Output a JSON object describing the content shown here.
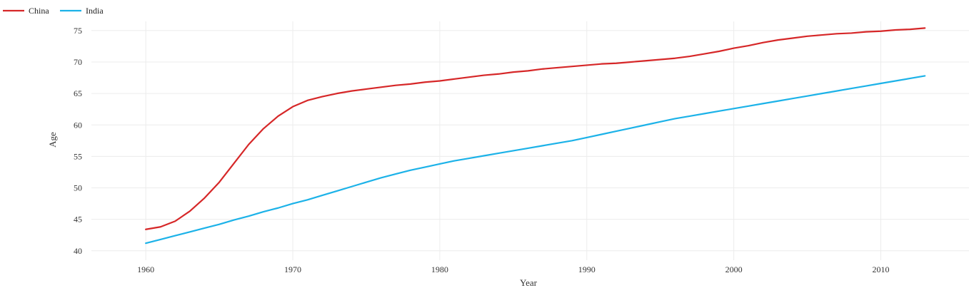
{
  "chart_data": {
    "type": "line",
    "title": "",
    "xlabel": "Year",
    "ylabel": "Age",
    "xlim": [
      1956.3,
      2016
    ],
    "ylim": [
      38.5,
      78.5
    ],
    "x_ticks": [
      1960,
      1970,
      1980,
      1990,
      2000,
      2010
    ],
    "y_ticks": [
      40,
      45,
      50,
      55,
      60,
      65,
      70,
      75
    ],
    "grid": true,
    "legend_position": "top-left",
    "x": [
      1960,
      1961,
      1962,
      1963,
      1964,
      1965,
      1966,
      1967,
      1968,
      1969,
      1970,
      1971,
      1972,
      1973,
      1974,
      1975,
      1976,
      1977,
      1978,
      1979,
      1980,
      1981,
      1982,
      1983,
      1984,
      1985,
      1986,
      1987,
      1988,
      1989,
      1990,
      1991,
      1992,
      1993,
      1994,
      1995,
      1996,
      1997,
      1998,
      1999,
      2000,
      2001,
      2002,
      2003,
      2004,
      2005,
      2006,
      2007,
      2008,
      2009,
      2010,
      2011,
      2012,
      2013
    ],
    "series": [
      {
        "name": "China",
        "color": "#d62728",
        "values": [
          43.4,
          43.8,
          44.7,
          46.3,
          48.4,
          50.9,
          53.9,
          56.9,
          59.4,
          61.4,
          62.9,
          63.9,
          64.5,
          65.0,
          65.4,
          65.7,
          66.0,
          66.3,
          66.5,
          66.8,
          67.0,
          67.3,
          67.6,
          67.9,
          68.1,
          68.4,
          68.6,
          68.9,
          69.1,
          69.3,
          69.5,
          69.7,
          69.8,
          70.0,
          70.2,
          70.4,
          70.6,
          70.9,
          71.3,
          71.7,
          72.2,
          72.6,
          73.1,
          73.5,
          73.8,
          74.1,
          74.3,
          74.5,
          74.6,
          74.8,
          74.9,
          75.1,
          75.2,
          75.4
        ]
      },
      {
        "name": "India",
        "color": "#1cb2e8",
        "values": [
          41.2,
          41.8,
          42.4,
          43.0,
          43.6,
          44.2,
          44.9,
          45.5,
          46.2,
          46.8,
          47.5,
          48.1,
          48.8,
          49.5,
          50.2,
          50.9,
          51.6,
          52.2,
          52.8,
          53.3,
          53.8,
          54.3,
          54.7,
          55.1,
          55.5,
          55.9,
          56.3,
          56.7,
          57.1,
          57.5,
          58.0,
          58.5,
          59.0,
          59.5,
          60.0,
          60.5,
          61.0,
          61.4,
          61.8,
          62.2,
          62.6,
          63.0,
          63.4,
          63.8,
          64.2,
          64.6,
          65.0,
          65.4,
          65.8,
          66.2,
          66.6,
          67.0,
          67.4,
          67.8
        ]
      }
    ]
  }
}
